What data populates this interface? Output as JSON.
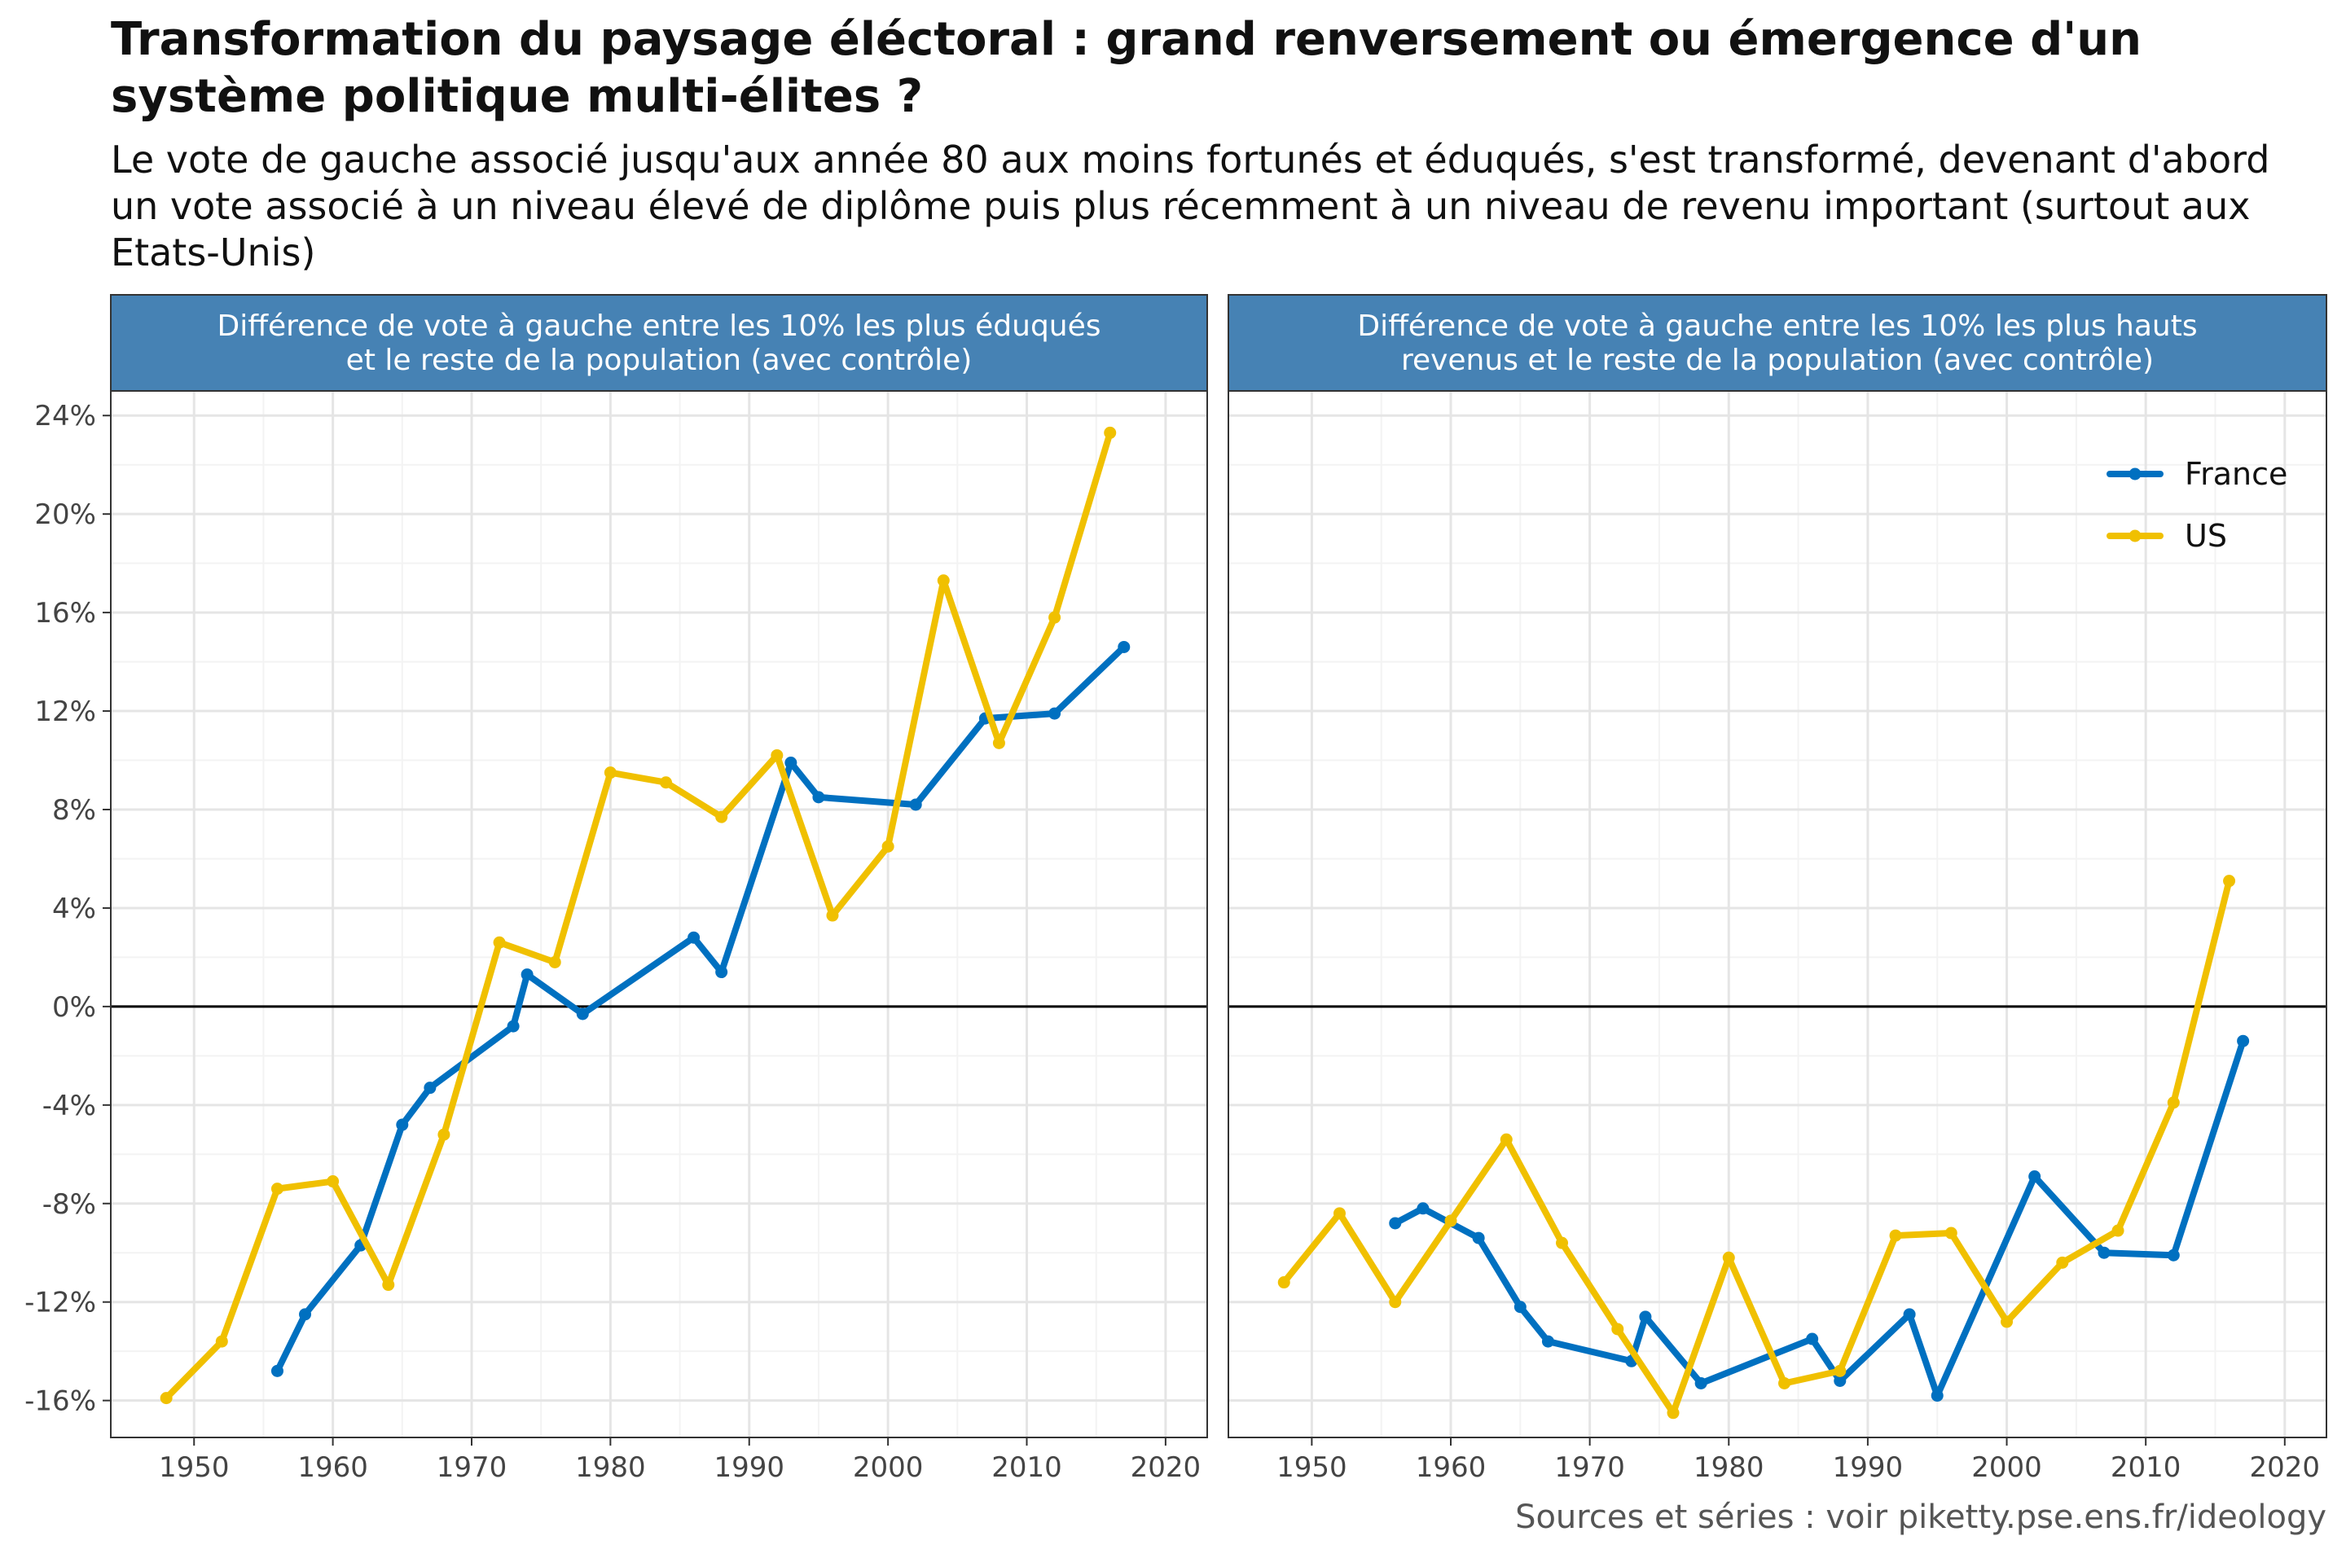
{
  "title": "Transformation du paysage éléctoral : grand renversement ou émergence d'un système politique multi-élites ?",
  "subtitle": "Le vote de gauche associé jusqu'aux année 80 aux moins fortunés et éduqués, s'est transformé, devenant d'abord un vote associé à un niveau élevé de diplôme puis plus récemment à un niveau de revenu important (surtout aux Etats-Unis)",
  "caption": "Sources et séries : voir piketty.pse.ens.fr/ideology",
  "colors": {
    "France": "#0070C0",
    "US": "#F0C000",
    "strip": "#4682B4"
  },
  "legend": {
    "position": "top-right of right panel",
    "items": [
      "France",
      "US"
    ]
  },
  "chart_data": [
    {
      "type": "line",
      "facet_title": [
        "Différence de vote à gauche entre les 10% les plus éduqués",
        "et le reste de la population (avec contrôle)"
      ],
      "xlim": [
        1944,
        2023
      ],
      "ylim": [
        -17.5,
        25
      ],
      "xticks": [
        1950,
        1960,
        1970,
        1980,
        1990,
        2000,
        2010,
        2020
      ],
      "yticks": [
        -16,
        -12,
        -8,
        -4,
        0,
        4,
        8,
        12,
        16,
        20,
        24
      ],
      "ytick_labels": [
        "-16%",
        "-12%",
        "-8%",
        "-4%",
        "0%",
        "4%",
        "8%",
        "12%",
        "16%",
        "20%",
        "24%"
      ],
      "xticks_labels": [
        "1950",
        "1960",
        "1970",
        "1980",
        "1990",
        "2000",
        "2010",
        "2020"
      ],
      "grid": true,
      "series": [
        {
          "name": "France",
          "x": [
            1956,
            1958,
            1962,
            1965,
            1967,
            1973,
            1974,
            1978,
            1986,
            1988,
            1993,
            1995,
            2002,
            2007,
            2012,
            2017
          ],
          "y": [
            -14.8,
            -12.5,
            -9.7,
            -4.8,
            -3.3,
            -0.8,
            1.3,
            -0.3,
            2.8,
            1.4,
            9.9,
            8.5,
            8.2,
            11.7,
            11.9,
            14.6
          ]
        },
        {
          "name": "US",
          "x": [
            1948,
            1952,
            1956,
            1960,
            1964,
            1968,
            1972,
            1976,
            1980,
            1984,
            1988,
            1992,
            1996,
            2000,
            2004,
            2008,
            2012,
            2016
          ],
          "y": [
            -15.9,
            -13.6,
            -7.4,
            -7.1,
            -11.3,
            -5.2,
            2.6,
            1.8,
            9.5,
            9.1,
            7.7,
            10.2,
            3.7,
            6.5,
            17.3,
            10.7,
            15.8,
            23.3
          ]
        }
      ]
    },
    {
      "type": "line",
      "facet_title": [
        "Différence de vote à gauche entre les 10% les plus hauts",
        "revenus et le reste de la population (avec contrôle)"
      ],
      "xlim": [
        1944,
        2023
      ],
      "ylim": [
        -17.5,
        25
      ],
      "xticks": [
        1950,
        1960,
        1970,
        1980,
        1990,
        2000,
        2010,
        2020
      ],
      "xticks_labels": [
        "1950",
        "1960",
        "1970",
        "1980",
        "1990",
        "2000",
        "2010",
        "2020"
      ],
      "grid": true,
      "series": [
        {
          "name": "France",
          "x": [
            1956,
            1958,
            1962,
            1965,
            1967,
            1973,
            1974,
            1978,
            1986,
            1988,
            1993,
            1995,
            2002,
            2007,
            2012,
            2017
          ],
          "y": [
            -8.8,
            -8.2,
            -9.4,
            -12.2,
            -13.6,
            -14.4,
            -12.6,
            -15.3,
            -13.5,
            -15.2,
            -12.5,
            -15.8,
            -6.9,
            -10.0,
            -10.1,
            -1.4
          ]
        },
        {
          "name": "US",
          "x": [
            1948,
            1952,
            1956,
            1960,
            1964,
            1968,
            1972,
            1976,
            1980,
            1984,
            1988,
            1992,
            1996,
            2000,
            2004,
            2008,
            2012,
            2016
          ],
          "y": [
            -11.2,
            -8.4,
            -12.0,
            -8.7,
            -5.4,
            -9.6,
            -13.1,
            -16.5,
            -10.2,
            -15.3,
            -14.8,
            -9.3,
            -9.2,
            -12.8,
            -10.4,
            -9.1,
            -3.9,
            5.1
          ]
        }
      ]
    }
  ]
}
